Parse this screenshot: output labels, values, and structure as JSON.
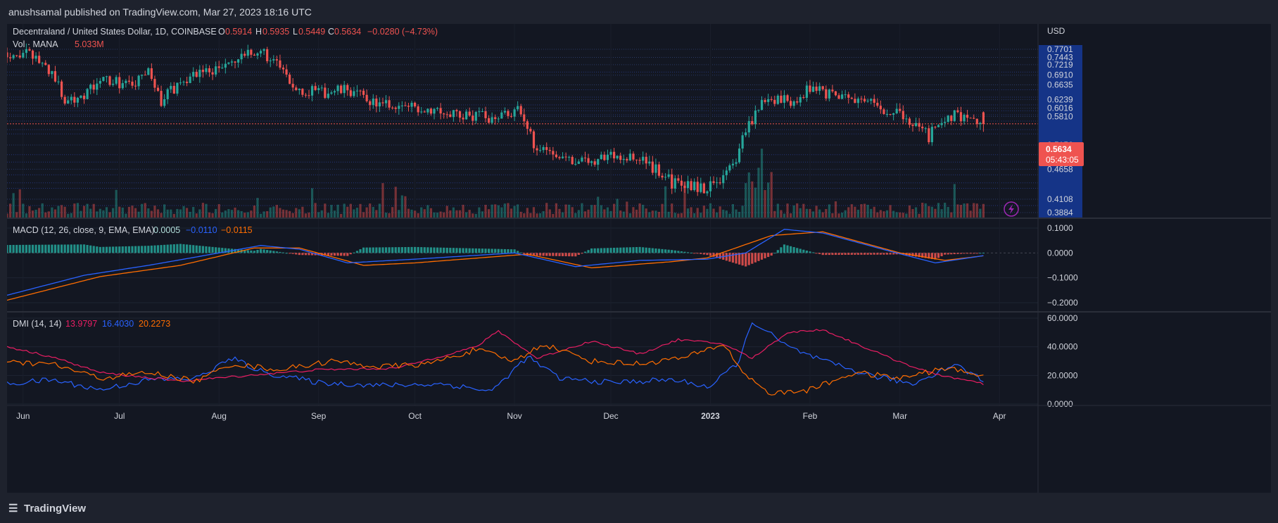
{
  "header": {
    "published": "anushsamal published on TradingView.com, Mar 27, 2023 18:16 UTC"
  },
  "footer": {
    "brand": "TradingView"
  },
  "colors": {
    "bg": "#131722",
    "up": "#26a69a",
    "down": "#ef5350",
    "macd_line": "#2962ff",
    "signal_line": "#ff6d00",
    "dmi_plus": "#2962ff",
    "dmi_minus": "#e91e63",
    "adx": "#ff6d00"
  },
  "main": {
    "legend": {
      "symbol": "Decentraland / United States Dollar, 1D, COINBASE",
      "o_label": "O",
      "o_val": "0.5914",
      "h_label": "H",
      "h_val": "0.5935",
      "l_label": "L",
      "l_val": "0.5449",
      "c_label": "C",
      "c_val": "0.5634",
      "change": "−0.0280 (−4.73%)"
    },
    "vol_label": "Vol · MANA",
    "vol_val": "5.033M",
    "currency": "USD",
    "price_badge": "0.5634",
    "countdown": "05:43:05"
  },
  "macd_pane": {
    "label": "MACD (12, 26, close, 9, EMA, EMA)",
    "hist_val": "0.0005",
    "macd_val": "−0.0110",
    "signal_val": "−0.0115"
  },
  "dmi_pane": {
    "label": "DMI (14, 14)",
    "minus_di": "13.9797",
    "plus_di": "16.4030",
    "adx": "20.2273"
  },
  "chart_data": [
    {
      "type": "candlestick",
      "title": "Decentraland / United States Dollar, 1D, COINBASE",
      "axis_ticks": [
        "0.7701",
        "0.7443",
        "0.7219",
        "0.6910",
        "0.6635",
        "0.6239",
        "0.6016",
        "0.5810",
        "0.5156",
        "0.4658",
        "0.4108",
        "0.3884"
      ],
      "x_ticks": [
        "Jun",
        "Jul",
        "Aug",
        "Sep",
        "Oct",
        "Nov",
        "Dec",
        "2023",
        "Feb",
        "Mar",
        "Apr"
      ],
      "ylim": [
        0.36,
        0.8
      ],
      "y_scale": "log",
      "close_anchors": [
        [
          "2022-05-27",
          0.76
        ],
        [
          "2022-06-04",
          0.75
        ],
        [
          "2022-06-10",
          0.7
        ],
        [
          "2022-06-14",
          0.62
        ],
        [
          "2022-06-20",
          0.64
        ],
        [
          "2022-06-27",
          0.68
        ],
        [
          "2022-07-05",
          0.66
        ],
        [
          "2022-07-10",
          0.7
        ],
        [
          "2022-07-14",
          0.62
        ],
        [
          "2022-07-21",
          0.68
        ],
        [
          "2022-07-26",
          0.7
        ],
        [
          "2022-08-01",
          0.71
        ],
        [
          "2022-08-08",
          0.74
        ],
        [
          "2022-08-14",
          0.77
        ],
        [
          "2022-08-19",
          0.72
        ],
        [
          "2022-08-24",
          0.66
        ],
        [
          "2022-09-01",
          0.64
        ],
        [
          "2022-09-10",
          0.65
        ],
        [
          "2022-09-20",
          0.61
        ],
        [
          "2022-09-28",
          0.605
        ],
        [
          "2022-10-08",
          0.6
        ],
        [
          "2022-10-14",
          0.585
        ],
        [
          "2022-10-24",
          0.58
        ],
        [
          "2022-11-02",
          0.595
        ],
        [
          "2022-11-07",
          0.52
        ],
        [
          "2022-11-15",
          0.495
        ],
        [
          "2022-11-22",
          0.48
        ],
        [
          "2022-12-02",
          0.495
        ],
        [
          "2022-12-12",
          0.48
        ],
        [
          "2022-12-20",
          0.44
        ],
        [
          "2022-12-31",
          0.43
        ],
        [
          "2023-01-08",
          0.47
        ],
        [
          "2023-01-13",
          0.56
        ],
        [
          "2023-01-17",
          0.62
        ],
        [
          "2023-01-26",
          0.62
        ],
        [
          "2023-02-02",
          0.66
        ],
        [
          "2023-02-08",
          0.63
        ],
        [
          "2023-02-18",
          0.63
        ],
        [
          "2023-02-25",
          0.595
        ],
        [
          "2023-03-04",
          0.575
        ],
        [
          "2023-03-10",
          0.535
        ],
        [
          "2023-03-16",
          0.585
        ],
        [
          "2023-03-22",
          0.582
        ],
        [
          "2023-03-27",
          0.5634
        ]
      ],
      "last_bar": {
        "o": 0.5914,
        "h": 0.5935,
        "l": 0.5449,
        "c": 0.5634
      },
      "last_volume": "5.033M"
    },
    {
      "type": "line",
      "title": "MACD (12, 26, close, 9, EMA, EMA)",
      "axis_ticks": [
        "0.1000",
        "0.0000",
        "−0.1000",
        "−0.2000"
      ],
      "ylim": [
        -0.23,
        0.12
      ],
      "series": [
        {
          "name": "MACD",
          "anchors": [
            [
              "2022-05-27",
              -0.17
            ],
            [
              "2022-06-20",
              -0.09
            ],
            [
              "2022-07-10",
              -0.05
            ],
            [
              "2022-08-01",
              0.0
            ],
            [
              "2022-08-14",
              0.03
            ],
            [
              "2022-08-26",
              0.015
            ],
            [
              "2022-09-10",
              -0.04
            ],
            [
              "2022-10-01",
              -0.025
            ],
            [
              "2022-11-01",
              0.0
            ],
            [
              "2022-11-20",
              -0.055
            ],
            [
              "2022-12-10",
              -0.03
            ],
            [
              "2022-12-31",
              -0.025
            ],
            [
              "2023-01-12",
              0.0
            ],
            [
              "2023-01-24",
              0.095
            ],
            [
              "2023-02-05",
              0.08
            ],
            [
              "2023-02-25",
              0.01
            ],
            [
              "2023-03-12",
              -0.04
            ],
            [
              "2023-03-27",
              -0.011
            ]
          ]
        },
        {
          "name": "Signal",
          "anchors": [
            [
              "2022-05-27",
              -0.19
            ],
            [
              "2022-06-25",
              -0.095
            ],
            [
              "2022-07-20",
              -0.05
            ],
            [
              "2022-08-12",
              0.02
            ],
            [
              "2022-08-26",
              0.02
            ],
            [
              "2022-09-15",
              -0.05
            ],
            [
              "2022-10-01",
              -0.04
            ],
            [
              "2022-11-05",
              -0.005
            ],
            [
              "2022-11-25",
              -0.06
            ],
            [
              "2022-12-20",
              -0.035
            ],
            [
              "2022-12-31",
              -0.02
            ],
            [
              "2023-01-20",
              0.07
            ],
            [
              "2023-02-05",
              0.085
            ],
            [
              "2023-03-01",
              0.0
            ],
            [
              "2023-03-15",
              -0.03
            ],
            [
              "2023-03-27",
              -0.0115
            ]
          ]
        }
      ],
      "histogram_last": 0.0005
    },
    {
      "type": "line",
      "title": "DMI (14, 14)",
      "axis_ticks": [
        "60.0000",
        "40.0000",
        "20.0000",
        "0.0000"
      ],
      "ylim": [
        0,
        60
      ],
      "series": [
        {
          "name": "+DI",
          "anchors": [
            [
              "2022-05-27",
              14
            ],
            [
              "2022-06-10",
              17
            ],
            [
              "2022-06-25",
              10
            ],
            [
              "2022-07-10",
              17
            ],
            [
              "2022-07-25",
              18
            ],
            [
              "2022-08-05",
              32
            ],
            [
              "2022-08-15",
              22
            ],
            [
              "2022-09-01",
              15
            ],
            [
              "2022-09-20",
              13
            ],
            [
              "2022-10-10",
              14
            ],
            [
              "2022-10-25",
              9
            ],
            [
              "2022-11-05",
              33
            ],
            [
              "2022-11-15",
              18
            ],
            [
              "2022-12-01",
              15
            ],
            [
              "2022-12-20",
              17
            ],
            [
              "2023-01-01",
              12
            ],
            [
              "2023-01-10",
              30
            ],
            [
              "2023-01-14",
              58
            ],
            [
              "2023-01-25",
              40
            ],
            [
              "2023-02-05",
              30
            ],
            [
              "2023-02-20",
              20
            ],
            [
              "2023-03-05",
              14
            ],
            [
              "2023-03-18",
              28
            ],
            [
              "2023-03-27",
              16.4
            ]
          ]
        },
        {
          "name": "−DI",
          "anchors": [
            [
              "2022-05-27",
              40
            ],
            [
              "2022-06-10",
              33
            ],
            [
              "2022-06-25",
              22
            ],
            [
              "2022-07-20",
              16
            ],
            [
              "2022-08-10",
              20
            ],
            [
              "2022-09-01",
              24
            ],
            [
              "2022-09-25",
              25
            ],
            [
              "2022-10-20",
              40
            ],
            [
              "2022-10-27",
              51
            ],
            [
              "2022-11-08",
              32
            ],
            [
              "2022-11-25",
              44
            ],
            [
              "2022-12-10",
              35
            ],
            [
              "2022-12-22",
              45
            ],
            [
              "2023-01-05",
              42
            ],
            [
              "2023-01-14",
              32
            ],
            [
              "2023-01-25",
              50
            ],
            [
              "2023-02-05",
              52
            ],
            [
              "2023-02-25",
              33
            ],
            [
              "2023-03-10",
              22
            ],
            [
              "2023-03-27",
              14.0
            ]
          ]
        },
        {
          "name": "ADX",
          "anchors": [
            [
              "2022-05-27",
              29
            ],
            [
              "2022-06-10",
              28
            ],
            [
              "2022-06-25",
              18
            ],
            [
              "2022-07-10",
              22
            ],
            [
              "2022-07-25",
              16
            ],
            [
              "2022-08-05",
              28
            ],
            [
              "2022-08-20",
              24
            ],
            [
              "2022-09-05",
              30
            ],
            [
              "2022-09-20",
              26
            ],
            [
              "2022-10-05",
              28
            ],
            [
              "2022-10-20",
              38
            ],
            [
              "2022-11-01",
              30
            ],
            [
              "2022-11-10",
              42
            ],
            [
              "2022-11-25",
              30
            ],
            [
              "2022-12-10",
              28
            ],
            [
              "2022-12-25",
              33
            ],
            [
              "2023-01-05",
              42
            ],
            [
              "2023-01-12",
              20
            ],
            [
              "2023-01-20",
              7
            ],
            [
              "2023-02-01",
              10
            ],
            [
              "2023-02-15",
              22
            ],
            [
              "2023-03-01",
              18
            ],
            [
              "2023-03-15",
              25
            ],
            [
              "2023-03-27",
              20.2
            ]
          ]
        }
      ]
    }
  ]
}
